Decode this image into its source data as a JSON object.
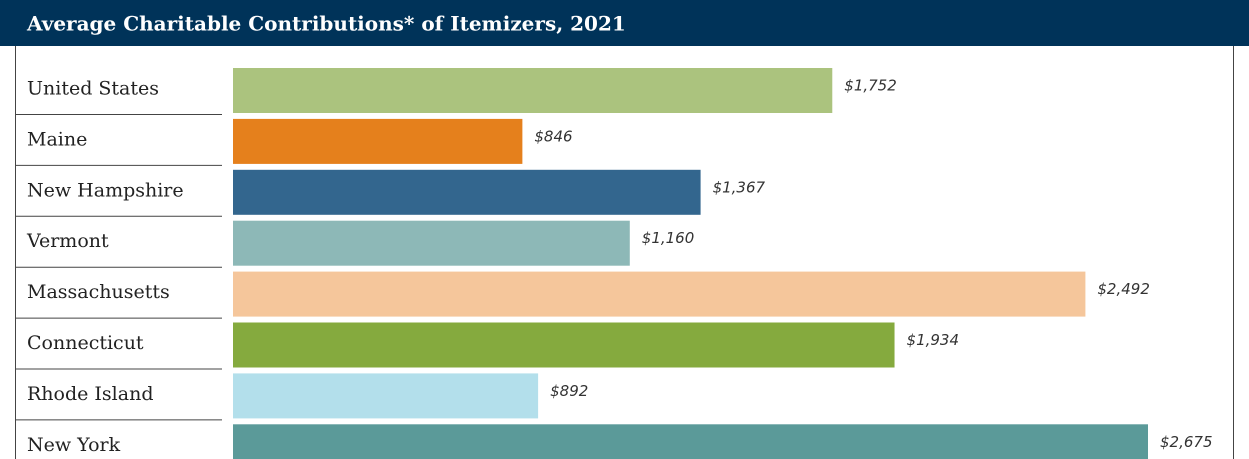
{
  "chart_data": {
    "type": "bar",
    "orientation": "horizontal",
    "title": "Average Charitable Contributions* of Itemizers, 2021",
    "categories": [
      "United States",
      "Maine",
      "New Hampshire",
      "Vermont",
      "Massachusetts",
      "Connecticut",
      "Rhode Island",
      "New York"
    ],
    "values": [
      1752,
      846,
      1367,
      1160,
      2492,
      1934,
      892,
      2675
    ],
    "value_labels": [
      "$1,752",
      "$846",
      "$1,367",
      "$1,160",
      "$2,492",
      "$1,934",
      "$892",
      "$2,675"
    ],
    "colors": [
      "#abc37e",
      "#e5801c",
      "#33668e",
      "#8db8b7",
      "#f5c69b",
      "#85aa3e",
      "#b3dfeb",
      "#5b9a99"
    ]
  }
}
